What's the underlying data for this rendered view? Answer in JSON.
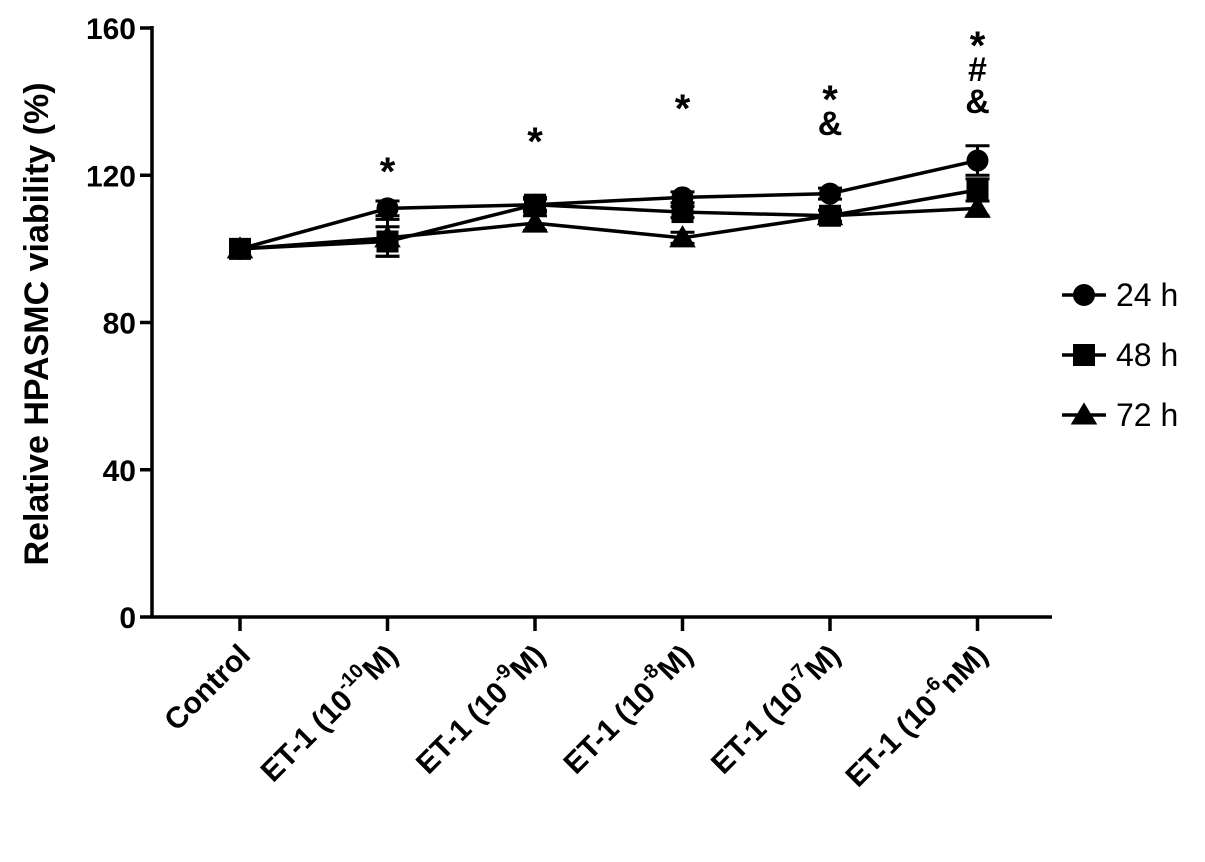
{
  "chart_data": {
    "type": "line",
    "title": "",
    "ylabel": "Relative HPASMC viability (%)",
    "xlabel": "",
    "ylim": [
      0,
      160
    ],
    "yticks": [
      "0",
      "40",
      "80",
      "120",
      "160"
    ],
    "categories": [
      {
        "main": "Control",
        "pre": "",
        "exp": "",
        "post": ""
      },
      {
        "main": "",
        "pre": "ET-1 (10",
        "exp": "-10",
        "post": "M)"
      },
      {
        "main": "",
        "pre": "ET-1 (10",
        "exp": "-9",
        "post": "M)"
      },
      {
        "main": "",
        "pre": "ET-1 (10",
        "exp": "-8",
        "post": "M)"
      },
      {
        "main": "",
        "pre": "ET-1 (10",
        "exp": "-7",
        "post": "M)"
      },
      {
        "main": "",
        "pre": "ET-1 (10",
        "exp": "-6",
        "post": "nM)"
      }
    ],
    "series": [
      {
        "name": "24 h",
        "marker": "circle",
        "values": [
          100,
          111,
          112,
          114,
          115,
          124
        ],
        "errors": [
          0,
          2,
          1.5,
          1.5,
          1.5,
          4
        ]
      },
      {
        "name": "48 h",
        "marker": "square",
        "values": [
          100,
          102,
          112,
          110,
          109,
          116
        ],
        "errors": [
          0,
          4,
          2,
          1.5,
          1.5,
          3
        ]
      },
      {
        "name": "72 h",
        "marker": "triangle",
        "values": [
          100,
          103,
          107,
          103,
          109,
          111
        ],
        "errors": [
          0,
          5,
          2,
          1.5,
          1.5,
          2
        ]
      }
    ],
    "annotations": [
      {
        "category_index": 1,
        "lines": [
          "*"
        ]
      },
      {
        "category_index": 2,
        "lines": [
          "*"
        ]
      },
      {
        "category_index": 3,
        "lines": [
          "*"
        ]
      },
      {
        "category_index": 4,
        "lines": [
          "*",
          "&"
        ]
      },
      {
        "category_index": 5,
        "lines": [
          "*",
          "#",
          "&"
        ]
      }
    ],
    "legend_position": "right",
    "grid": false
  }
}
